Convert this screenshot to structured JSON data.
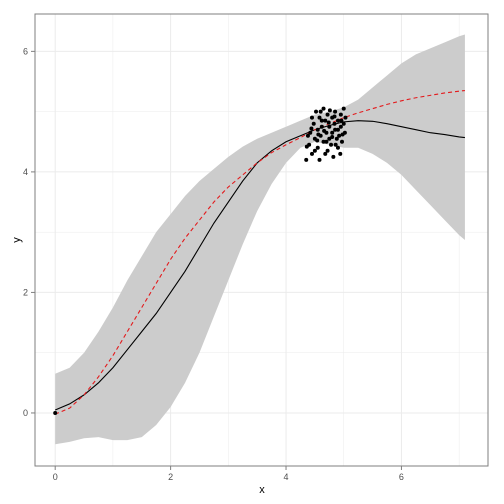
{
  "chart_data": {
    "type": "line",
    "title": "",
    "xlabel": "x",
    "ylabel": "y",
    "xlim": [
      -0.35,
      7.5
    ],
    "ylim": [
      -0.88,
      6.62
    ],
    "x_ticks": [
      0,
      2,
      4,
      6
    ],
    "y_ticks": [
      0,
      2,
      4,
      6
    ],
    "grid": true,
    "legend": "none",
    "colors": {
      "band": "#cccccc",
      "solid_line": "#000000",
      "dashed_line": "#e31a1c",
      "points": "#000000",
      "grid": "#ebebeb",
      "panel_border": "#7f7f7f"
    },
    "series": [
      {
        "type": "area",
        "x": [
          0,
          0.25,
          0.5,
          0.75,
          1,
          1.25,
          1.5,
          1.75,
          2,
          2.25,
          2.5,
          2.75,
          3,
          3.25,
          3.5,
          3.75,
          4,
          4.25,
          4.5,
          4.75,
          5,
          5.25,
          5.5,
          5.75,
          6,
          6.25,
          6.5,
          6.75,
          7,
          7.1
        ],
        "lower": [
          -0.52,
          -0.48,
          -0.42,
          -0.4,
          -0.45,
          -0.45,
          -0.4,
          -0.2,
          0.1,
          0.5,
          1.0,
          1.6,
          2.2,
          2.8,
          3.35,
          3.8,
          4.15,
          4.4,
          4.5,
          4.45,
          4.4,
          4.4,
          4.3,
          4.15,
          3.95,
          3.7,
          3.45,
          3.2,
          2.95,
          2.87
        ],
        "upper": [
          0.65,
          0.75,
          1.0,
          1.35,
          1.75,
          2.2,
          2.6,
          3.0,
          3.3,
          3.6,
          3.85,
          4.05,
          4.25,
          4.42,
          4.55,
          4.65,
          4.75,
          4.85,
          4.95,
          5.0,
          5.07,
          5.2,
          5.4,
          5.6,
          5.8,
          5.95,
          6.05,
          6.15,
          6.25,
          6.28
        ]
      },
      {
        "type": "line",
        "style": "solid",
        "x": [
          0,
          0.25,
          0.5,
          0.75,
          1,
          1.25,
          1.5,
          1.75,
          2,
          2.25,
          2.5,
          2.75,
          3,
          3.25,
          3.5,
          3.75,
          4,
          4.25,
          4.5,
          4.75,
          5,
          5.25,
          5.5,
          5.75,
          6,
          6.25,
          6.5,
          6.75,
          7,
          7.1
        ],
        "y": [
          0.05,
          0.15,
          0.3,
          0.5,
          0.75,
          1.05,
          1.35,
          1.65,
          2.0,
          2.35,
          2.75,
          3.15,
          3.5,
          3.85,
          4.15,
          4.35,
          4.5,
          4.6,
          4.7,
          4.77,
          4.83,
          4.85,
          4.84,
          4.8,
          4.75,
          4.7,
          4.65,
          4.62,
          4.58,
          4.57
        ]
      },
      {
        "type": "line",
        "style": "dashed",
        "x": [
          0,
          0.25,
          0.5,
          0.75,
          1,
          1.25,
          1.5,
          1.75,
          2,
          2.25,
          2.5,
          2.75,
          3,
          3.25,
          3.5,
          3.75,
          4,
          4.25,
          4.5,
          4.75,
          5,
          5.25,
          5.5,
          5.75,
          6,
          6.25,
          6.5,
          6.75,
          7,
          7.1
        ],
        "y": [
          -0.02,
          0.08,
          0.3,
          0.6,
          0.95,
          1.35,
          1.75,
          2.15,
          2.55,
          2.9,
          3.2,
          3.5,
          3.75,
          3.95,
          4.15,
          4.32,
          4.45,
          4.57,
          4.7,
          4.8,
          4.9,
          4.98,
          5.05,
          5.12,
          5.18,
          5.23,
          5.27,
          5.31,
          5.34,
          5.35
        ]
      },
      {
        "type": "scatter",
        "points": [
          [
            0,
            0
          ],
          [
            4.35,
            4.2
          ],
          [
            4.4,
            4.45
          ],
          [
            4.42,
            4.65
          ],
          [
            4.45,
            4.3
          ],
          [
            4.48,
            4.8
          ],
          [
            4.5,
            4.55
          ],
          [
            4.52,
            5.0
          ],
          [
            4.55,
            4.7
          ],
          [
            4.55,
            4.4
          ],
          [
            4.58,
            4.9
          ],
          [
            4.6,
            4.6
          ],
          [
            4.62,
            4.75
          ],
          [
            4.65,
            4.5
          ],
          [
            4.65,
            5.05
          ],
          [
            4.68,
            4.85
          ],
          [
            4.7,
            4.65
          ],
          [
            4.72,
            4.35
          ],
          [
            4.72,
            4.95
          ],
          [
            4.75,
            4.55
          ],
          [
            4.75,
            4.75
          ],
          [
            4.78,
            4.45
          ],
          [
            4.8,
            4.9
          ],
          [
            4.8,
            4.65
          ],
          [
            4.82,
            4.25
          ],
          [
            4.85,
            4.7
          ],
          [
            4.85,
            5.0
          ],
          [
            4.88,
            4.55
          ],
          [
            4.9,
            4.85
          ],
          [
            4.9,
            4.4
          ],
          [
            4.92,
            4.6
          ],
          [
            4.95,
            4.75
          ],
          [
            4.95,
            4.95
          ],
          [
            4.97,
            4.5
          ],
          [
            5.0,
            4.8
          ],
          [
            5.0,
            5.05
          ],
          [
            5.02,
            4.65
          ],
          [
            4.38,
            4.6
          ],
          [
            4.45,
            4.9
          ],
          [
            4.5,
            4.35
          ],
          [
            4.58,
            4.2
          ],
          [
            4.6,
            5.0
          ],
          [
            4.68,
            4.3
          ],
          [
            4.76,
            5.02
          ],
          [
            4.84,
            4.8
          ],
          [
            4.9,
            4.7
          ],
          [
            4.94,
            4.3
          ],
          [
            5.03,
            4.9
          ],
          [
            4.44,
            4.72
          ],
          [
            4.56,
            4.62
          ],
          [
            4.66,
            4.68
          ],
          [
            4.7,
            4.5
          ],
          [
            4.8,
            4.58
          ],
          [
            4.86,
            4.45
          ],
          [
            4.98,
            4.62
          ],
          [
            4.36,
            4.42
          ],
          [
            4.62,
            4.85
          ],
          [
            4.74,
            4.82
          ],
          [
            4.84,
            4.92
          ],
          [
            4.96,
            4.85
          ],
          [
            4.54,
            4.52
          ]
        ]
      }
    ]
  }
}
